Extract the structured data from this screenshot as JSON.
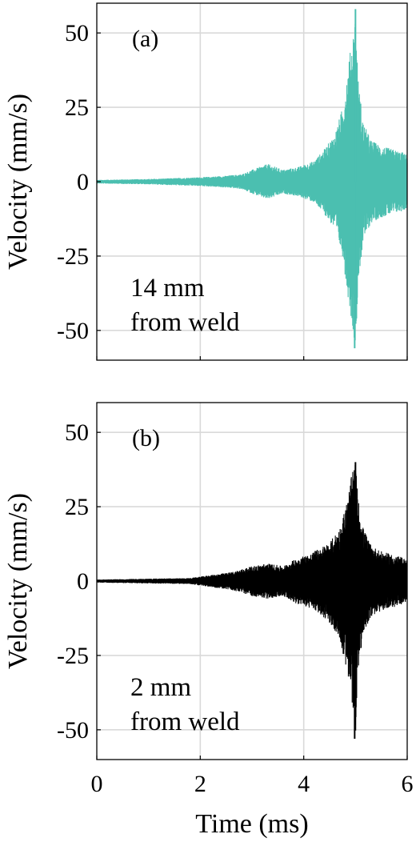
{
  "chart_data": [
    {
      "type": "line",
      "panel_label": "(a)",
      "annotation": [
        "14 mm",
        "from weld"
      ],
      "ylabel": "Velocity (mm/s)",
      "xlabel": "",
      "xlim": [
        0,
        6
      ],
      "ylim": [
        -60,
        60
      ],
      "xticks": [
        "0",
        "2",
        "4",
        "6"
      ],
      "yticks": [
        "50",
        "25",
        "0",
        "-25",
        "-50"
      ],
      "ytick_values": [
        50,
        25,
        0,
        -25,
        -50
      ],
      "xtick_values": [
        0,
        2,
        4,
        6
      ],
      "grid": true,
      "color": "#4bbfb0",
      "series": [
        {
          "x_ms": [
            0,
            1,
            2,
            2.5,
            2.8,
            3.0,
            3.3,
            3.6,
            3.9,
            4.2,
            4.4,
            4.6,
            4.75,
            4.85,
            4.95,
            5.0,
            5.05,
            5.15,
            5.3,
            5.5,
            5.7,
            5.9,
            6.0
          ],
          "upper_mm_s": [
            0.6,
            0.9,
            1.5,
            2,
            2.5,
            4,
            6,
            4,
            5,
            7,
            11,
            16,
            25,
            38,
            50,
            58,
            35,
            20,
            14,
            12,
            11,
            10,
            9
          ],
          "lower_mm_s": [
            -0.6,
            -0.9,
            -1.5,
            -2,
            -2.5,
            -4,
            -6,
            -4,
            -5,
            -7,
            -11,
            -16,
            -25,
            -38,
            -50,
            -56,
            -35,
            -20,
            -14,
            -12,
            -11,
            -10,
            -9
          ]
        }
      ]
    },
    {
      "type": "line",
      "panel_label": "(b)",
      "annotation": [
        "2 mm",
        "from weld"
      ],
      "ylabel": "Velocity (mm/s)",
      "xlabel": "Time (ms)",
      "xlim": [
        0,
        6
      ],
      "ylim": [
        -60,
        60
      ],
      "xticks": [
        "0",
        "2",
        "4",
        "6"
      ],
      "yticks": [
        "50",
        "25",
        "0",
        "-25",
        "-50"
      ],
      "ytick_values": [
        50,
        25,
        0,
        -25,
        -50
      ],
      "xtick_values": [
        0,
        2,
        4,
        6
      ],
      "grid": true,
      "color": "#000000",
      "series": [
        {
          "x_ms": [
            0,
            1,
            1.8,
            2.2,
            2.6,
            3.0,
            3.3,
            3.6,
            3.9,
            4.1,
            4.3,
            4.5,
            4.7,
            4.85,
            4.95,
            5.0,
            5.05,
            5.15,
            5.3,
            5.5,
            5.7,
            5.9,
            6.0
          ],
          "upper_mm_s": [
            0.5,
            0.8,
            1,
            2,
            3,
            5,
            6,
            5,
            8,
            9,
            11,
            13,
            18,
            28,
            38,
            40,
            28,
            18,
            12,
            10,
            9,
            8,
            7
          ],
          "lower_mm_s": [
            -0.5,
            -0.8,
            -1,
            -2,
            -3,
            -5,
            -6,
            -5,
            -8,
            -9,
            -11,
            -14,
            -20,
            -32,
            -45,
            -53,
            -30,
            -18,
            -12,
            -10,
            -9,
            -8,
            -7
          ]
        }
      ]
    }
  ]
}
